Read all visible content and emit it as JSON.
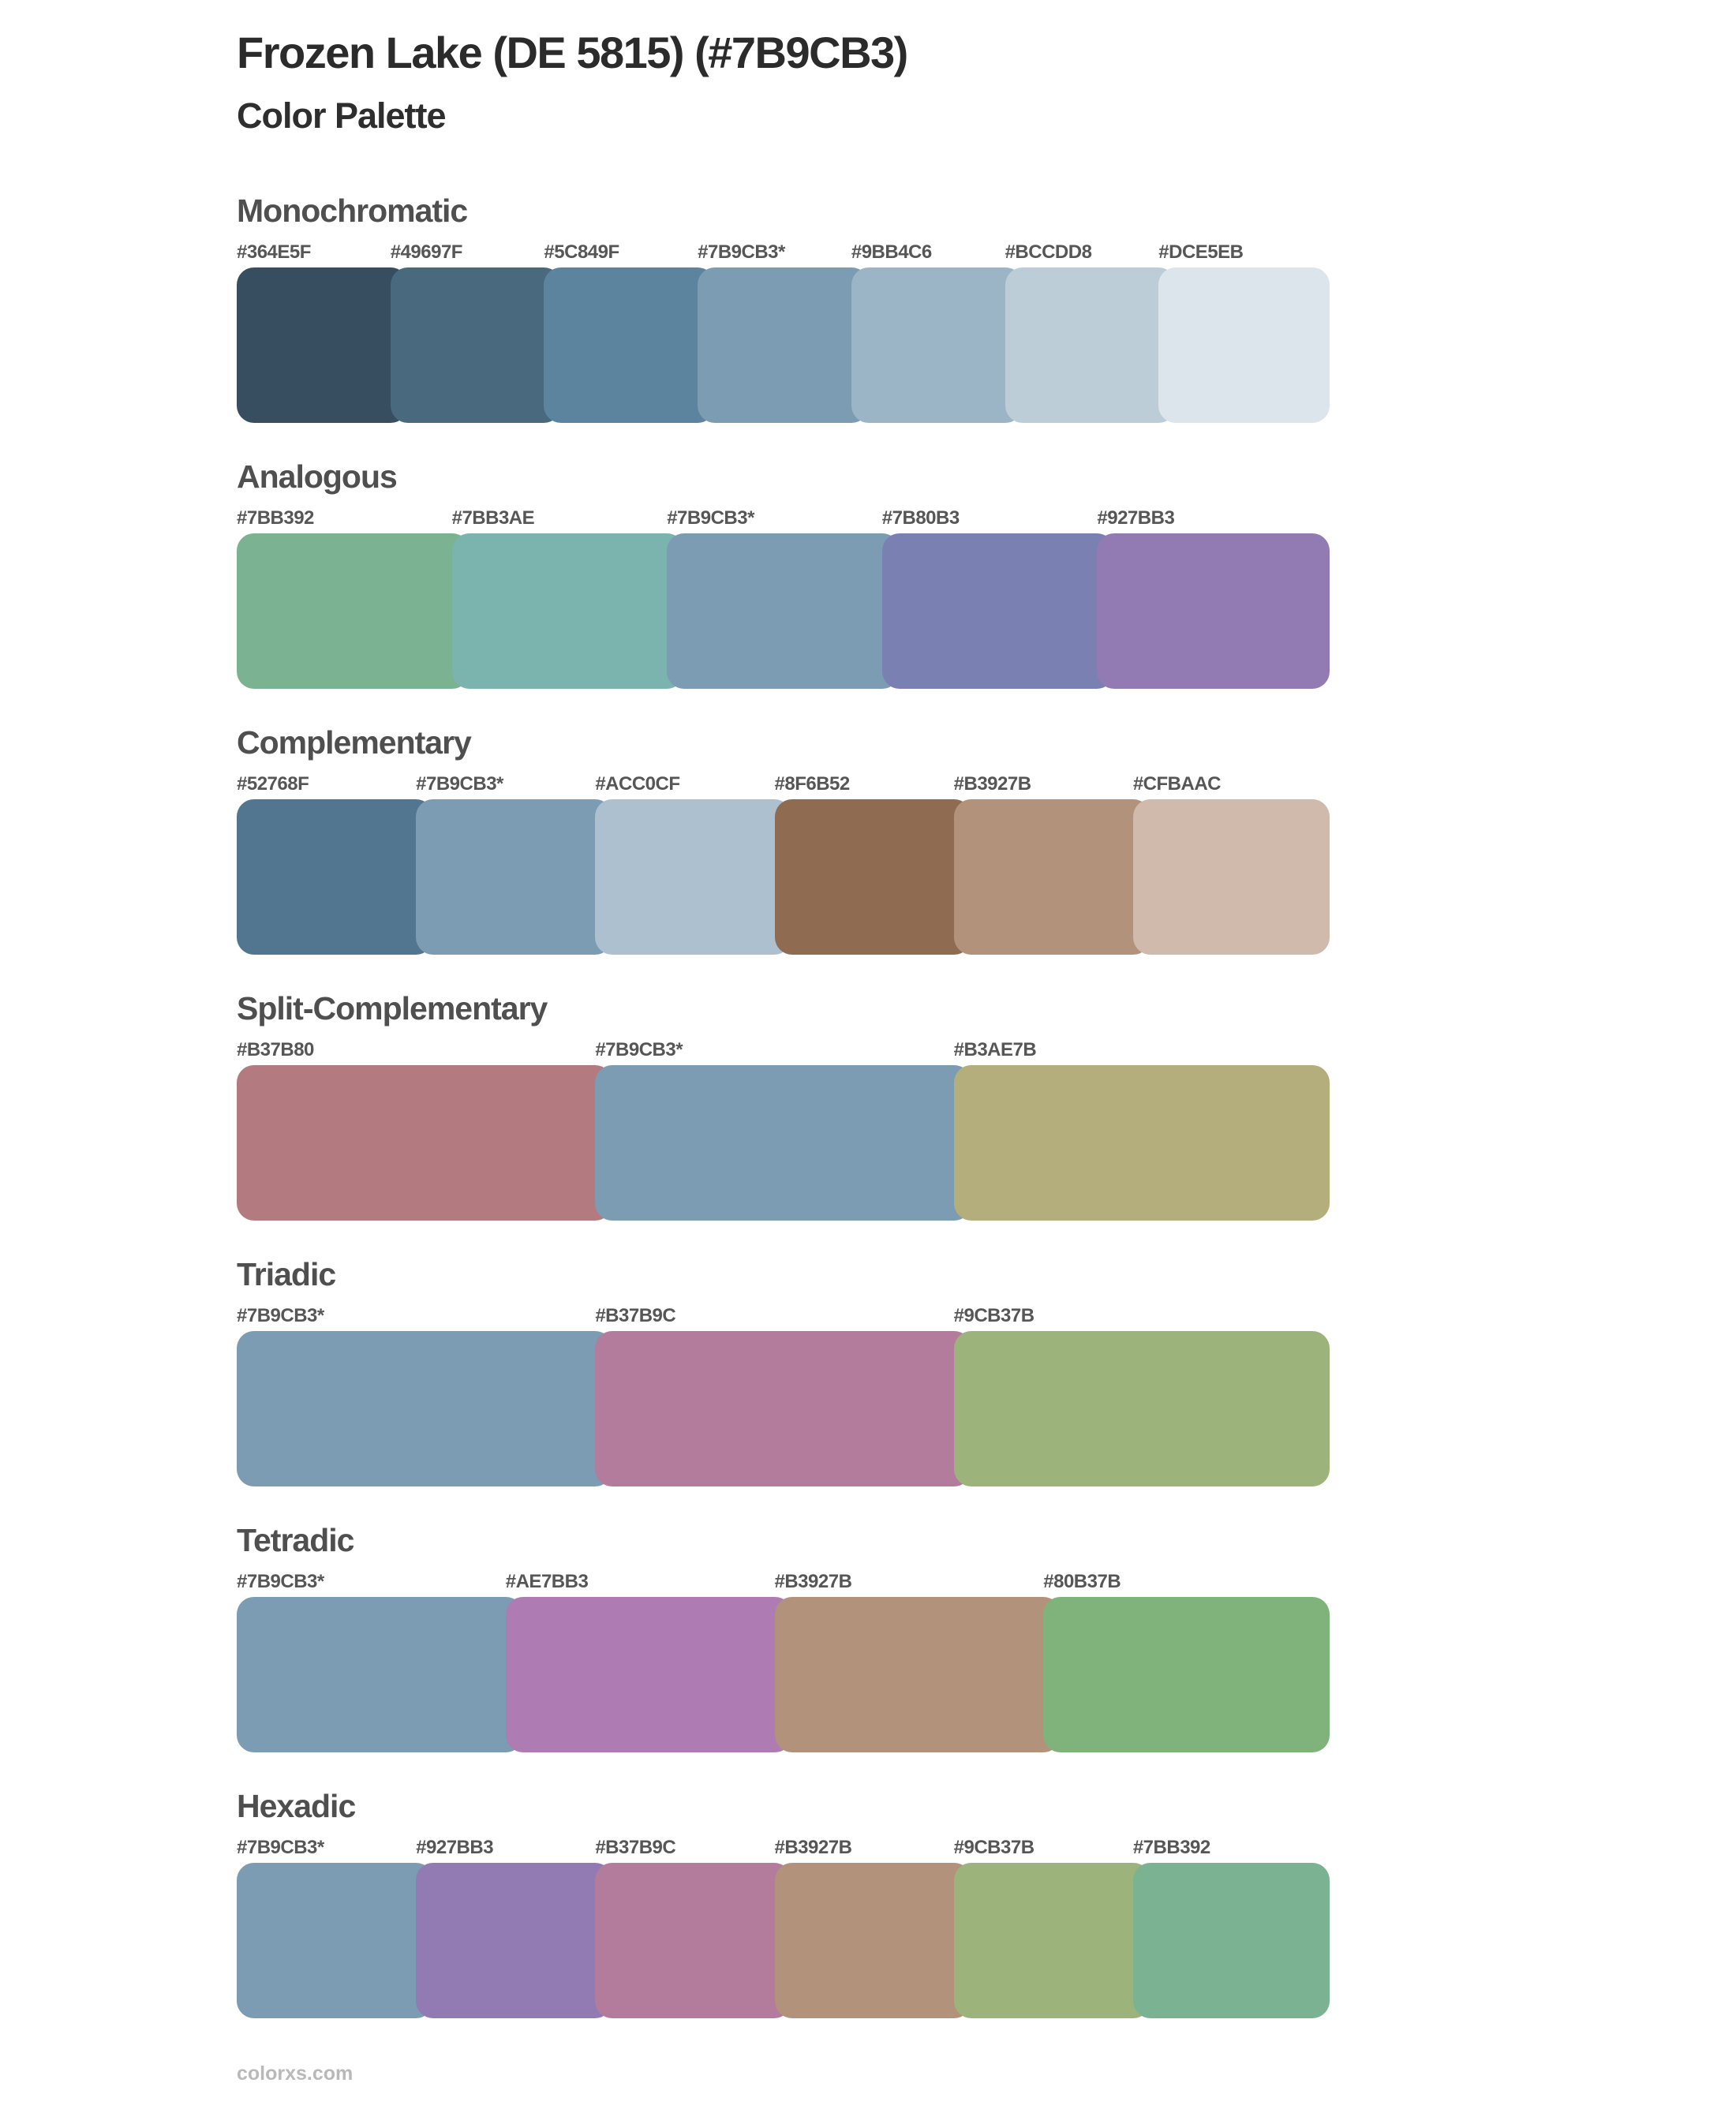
{
  "header": {
    "title": "Frozen Lake (DE 5815) (#7B9CB3)",
    "subtitle": "Color Palette"
  },
  "base_color": "#7B9CB3",
  "groups": [
    {
      "name": "Monochromatic",
      "swatches": [
        {
          "label": "#364E5F",
          "color": "#364E5F"
        },
        {
          "label": "#49697F",
          "color": "#49697F"
        },
        {
          "label": "#5C849F",
          "color": "#5C849F"
        },
        {
          "label": "#7B9CB3*",
          "color": "#7B9CB3"
        },
        {
          "label": "#9BB4C6",
          "color": "#9BB4C6"
        },
        {
          "label": "#BCCDD8",
          "color": "#BCCDD8"
        },
        {
          "label": "#DCE5EB",
          "color": "#DCE5EB"
        }
      ]
    },
    {
      "name": "Analogous",
      "swatches": [
        {
          "label": "#7BB392",
          "color": "#7BB392"
        },
        {
          "label": "#7BB3AE",
          "color": "#7BB3AE"
        },
        {
          "label": "#7B9CB3*",
          "color": "#7B9CB3"
        },
        {
          "label": "#7B80B3",
          "color": "#7B80B3"
        },
        {
          "label": "#927BB3",
          "color": "#927BB3"
        }
      ]
    },
    {
      "name": "Complementary",
      "swatches": [
        {
          "label": "#52768F",
          "color": "#52768F"
        },
        {
          "label": "#7B9CB3*",
          "color": "#7B9CB3"
        },
        {
          "label": "#ACC0CF",
          "color": "#ACC0CF"
        },
        {
          "label": "#8F6B52",
          "color": "#8F6B52"
        },
        {
          "label": "#B3927B",
          "color": "#B3927B"
        },
        {
          "label": "#CFBAAC",
          "color": "#CFBAAC"
        }
      ]
    },
    {
      "name": "Split-Complementary",
      "swatches": [
        {
          "label": "#B37B80",
          "color": "#B37B80"
        },
        {
          "label": "#7B9CB3*",
          "color": "#7B9CB3"
        },
        {
          "label": "#B3AE7B",
          "color": "#B3AE7B"
        }
      ]
    },
    {
      "name": "Triadic",
      "swatches": [
        {
          "label": "#7B9CB3*",
          "color": "#7B9CB3"
        },
        {
          "label": "#B37B9C",
          "color": "#B37B9C"
        },
        {
          "label": "#9CB37B",
          "color": "#9CB37B"
        }
      ]
    },
    {
      "name": "Tetradic",
      "swatches": [
        {
          "label": "#7B9CB3*",
          "color": "#7B9CB3"
        },
        {
          "label": "#AE7BB3",
          "color": "#AE7BB3"
        },
        {
          "label": "#B3927B",
          "color": "#B3927B"
        },
        {
          "label": "#80B37B",
          "color": "#80B37B"
        }
      ]
    },
    {
      "name": "Hexadic",
      "swatches": [
        {
          "label": "#7B9CB3*",
          "color": "#7B9CB3"
        },
        {
          "label": "#927BB3",
          "color": "#927BB3"
        },
        {
          "label": "#B37B9C",
          "color": "#B37B9C"
        },
        {
          "label": "#B3927B",
          "color": "#B3927B"
        },
        {
          "label": "#9CB37B",
          "color": "#9CB37B"
        },
        {
          "label": "#7BB392",
          "color": "#7BB392"
        }
      ]
    }
  ],
  "footer": {
    "text": "colorxs.com"
  }
}
